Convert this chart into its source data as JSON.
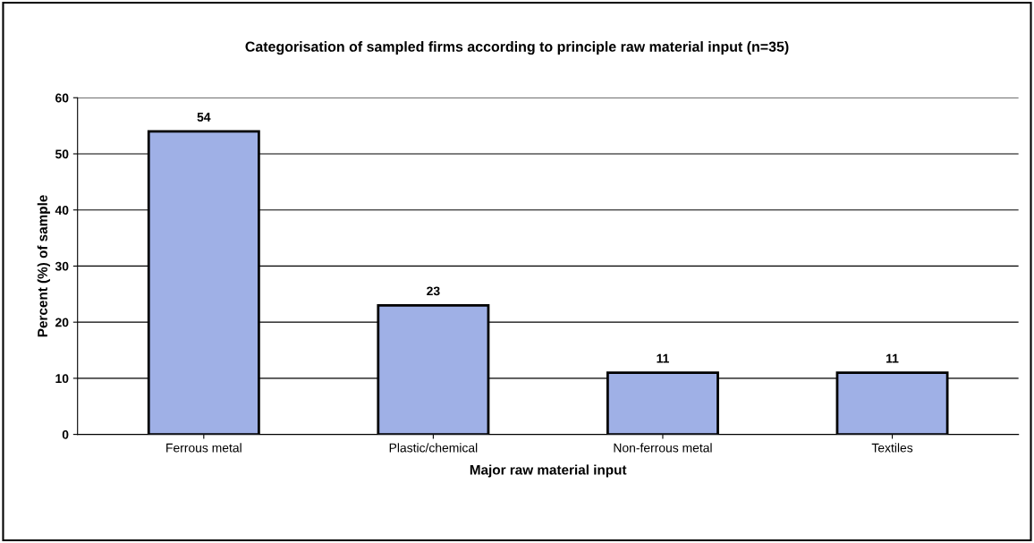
{
  "chart_data": {
    "type": "bar",
    "title": "Categorisation of sampled firms according to principle raw material input (n=35)",
    "xlabel": "Major raw material input",
    "ylabel": "Percent (%) of sample",
    "categories": [
      "Ferrous metal",
      "Plastic/chemical",
      "Non-ferrous metal",
      "Textiles"
    ],
    "values": [
      54,
      23,
      11,
      11
    ],
    "color": "#9fb0e6",
    "ylim": [
      0,
      60
    ],
    "yticks": [
      0,
      10,
      20,
      30,
      40,
      50,
      60
    ],
    "grid": "y",
    "data_labels": true
  }
}
